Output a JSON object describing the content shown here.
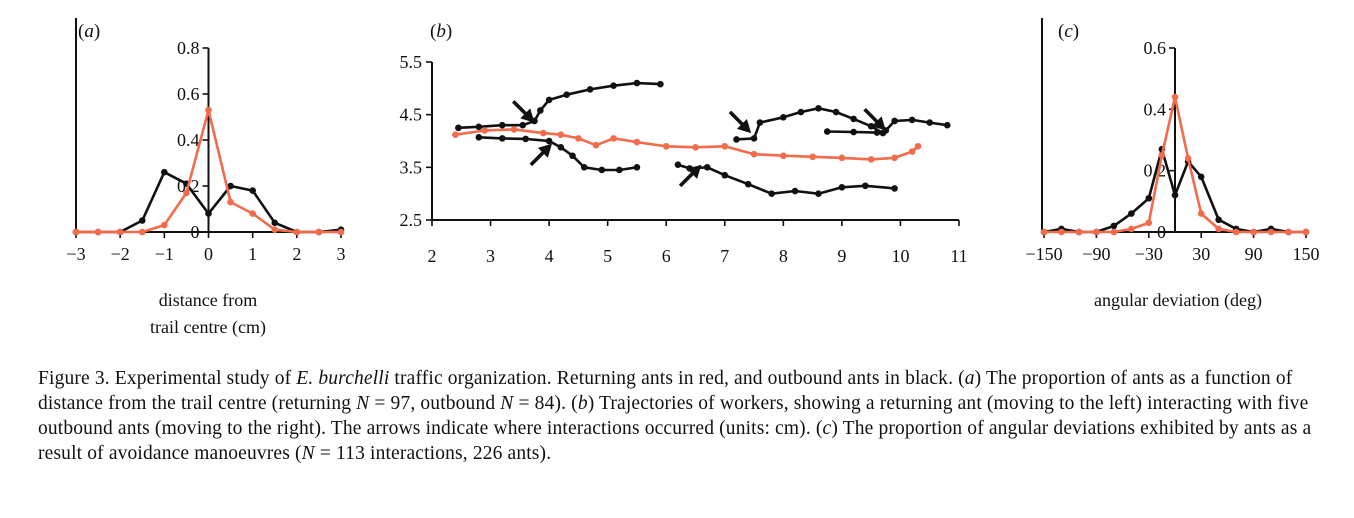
{
  "colors": {
    "returning": "#f26b4a",
    "outbound": "#111111",
    "axis": "#111111"
  },
  "chart_data": [
    {
      "panel_label": "(a)",
      "type": "line",
      "xlabel_lines": [
        "distance from",
        "trail centre (cm)"
      ],
      "xlim": [
        -3,
        3
      ],
      "ylim": [
        0,
        0.8
      ],
      "xticks": [
        "−3",
        "−2",
        "−1",
        "0",
        "1",
        "2",
        "3"
      ],
      "yticks": [
        "0",
        "0.2",
        "0.4",
        "0.6",
        "0.8"
      ],
      "series": [
        {
          "color": "#111111",
          "x": [
            -3,
            -2.5,
            -2,
            -1.5,
            -1,
            -0.5,
            0,
            0.5,
            1,
            1.5,
            2,
            2.5,
            3
          ],
          "y": [
            0,
            0,
            0,
            0.05,
            0.26,
            0.21,
            0.08,
            0.2,
            0.18,
            0.04,
            0,
            0,
            0.01
          ]
        },
        {
          "color": "#f26b4a",
          "x": [
            -3,
            -2.5,
            -2,
            -1.5,
            -1,
            -0.5,
            0,
            0.5,
            1,
            1.5,
            2,
            2.5,
            3
          ],
          "y": [
            0,
            0,
            0,
            0,
            0.03,
            0.17,
            0.53,
            0.13,
            0.08,
            0.01,
            0,
            0,
            0
          ]
        }
      ]
    },
    {
      "panel_label": "(b)",
      "type": "line",
      "xlim": [
        2,
        11
      ],
      "ylim": [
        2.5,
        5.5
      ],
      "xticks": [
        "2",
        "3",
        "4",
        "5",
        "6",
        "7",
        "8",
        "9",
        "10",
        "11"
      ],
      "yticks": [
        "2.5",
        "3.5",
        "4.5",
        "5.5"
      ],
      "series": [
        {
          "color": "#111111",
          "x": [
            2.45,
            2.8,
            3.2,
            3.55,
            3.75,
            3.85,
            4.0,
            4.3,
            4.7,
            5.1,
            5.5,
            5.9
          ],
          "y": [
            4.25,
            4.27,
            4.3,
            4.3,
            4.38,
            4.58,
            4.78,
            4.88,
            4.98,
            5.05,
            5.1,
            5.08
          ]
        },
        {
          "color": "#111111",
          "x": [
            2.8,
            3.2,
            3.6,
            4.0,
            4.2,
            4.4,
            4.6,
            4.9,
            5.2,
            5.5
          ],
          "y": [
            4.07,
            4.05,
            4.04,
            4.0,
            3.88,
            3.72,
            3.5,
            3.45,
            3.45,
            3.5
          ]
        },
        {
          "color": "#111111",
          "x": [
            6.2,
            6.4,
            6.7,
            7.0,
            7.4,
            7.8,
            8.2,
            8.6,
            9.0,
            9.4,
            9.9
          ],
          "y": [
            3.55,
            3.48,
            3.5,
            3.35,
            3.18,
            3.0,
            3.05,
            3.0,
            3.12,
            3.15,
            3.1
          ]
        },
        {
          "color": "#111111",
          "x": [
            7.2,
            7.5,
            7.6,
            8.0,
            8.3,
            8.6,
            8.9,
            9.2,
            9.5,
            9.7
          ],
          "y": [
            4.03,
            4.05,
            4.35,
            4.45,
            4.55,
            4.62,
            4.55,
            4.42,
            4.28,
            4.15
          ]
        },
        {
          "color": "#111111",
          "x": [
            8.75,
            9.2,
            9.6,
            9.75,
            9.9,
            10.2,
            10.5,
            10.8
          ],
          "y": [
            4.18,
            4.17,
            4.16,
            4.2,
            4.38,
            4.4,
            4.35,
            4.3
          ]
        },
        {
          "color": "#f26b4a",
          "x": [
            2.4,
            2.9,
            3.4,
            3.9,
            4.2,
            4.5,
            4.8,
            5.1,
            5.5,
            6.0,
            6.5,
            7.0,
            7.5,
            8.0,
            8.5,
            9.0,
            9.5,
            9.9,
            10.2,
            10.3
          ],
          "y": [
            4.12,
            4.2,
            4.22,
            4.15,
            4.12,
            4.05,
            3.92,
            4.05,
            3.98,
            3.9,
            3.88,
            3.9,
            3.75,
            3.72,
            3.7,
            3.68,
            3.65,
            3.68,
            3.8,
            3.9
          ]
        }
      ],
      "arrows": [
        {
          "x": 3.75,
          "y": 4.35,
          "dir": "down-right"
        },
        {
          "x": 4.05,
          "y": 3.95,
          "dir": "up-right"
        },
        {
          "x": 6.6,
          "y": 3.55,
          "dir": "up-right"
        },
        {
          "x": 7.45,
          "y": 4.15,
          "dir": "down-right"
        },
        {
          "x": 9.75,
          "y": 4.2,
          "dir": "down-right"
        }
      ]
    },
    {
      "panel_label": "(c)",
      "type": "line",
      "xlabel_lines": [
        "angular deviation (deg)"
      ],
      "xlim": [
        -150,
        150
      ],
      "ylim": [
        0,
        0.6
      ],
      "xticks": [
        "−150",
        "−90",
        "−30",
        "30",
        "90",
        "150"
      ],
      "xtick_values": [
        -150,
        -90,
        -30,
        30,
        90,
        150
      ],
      "yticks": [
        "0",
        "0.2",
        "0.4",
        "0.6"
      ],
      "series": [
        {
          "color": "#111111",
          "x": [
            -150,
            -130,
            -110,
            -90,
            -70,
            -50,
            -30,
            -15,
            0,
            15,
            30,
            50,
            70,
            90,
            110,
            130,
            150
          ],
          "y": [
            0,
            0.01,
            0,
            0,
            0.02,
            0.06,
            0.11,
            0.27,
            0.12,
            0.23,
            0.18,
            0.04,
            0.01,
            0,
            0.01,
            0,
            0
          ]
        },
        {
          "color": "#f26b4a",
          "x": [
            -150,
            -130,
            -110,
            -90,
            -70,
            -50,
            -30,
            -15,
            0,
            15,
            30,
            50,
            70,
            90,
            110,
            130,
            150
          ],
          "y": [
            0,
            0,
            0,
            0,
            0,
            0.01,
            0.03,
            0.25,
            0.44,
            0.24,
            0.06,
            0.01,
            0,
            0,
            0,
            0,
            0
          ]
        }
      ]
    }
  ],
  "caption": {
    "label": "Figure 3.",
    "t1": " Experimental study of ",
    "species": "E. burchelli",
    "t2": " traffic organization. Returning ants in red, and outbound ants in black. (",
    "pa": "a",
    "t3": ") The proportion of ants as a function of distance from the trail centre (returning ",
    "n1": "N",
    "t4": " = 97, outbound ",
    "n2": "N",
    "t5": " = 84). (",
    "pb": "b",
    "t6": ") Trajectories of workers, showing a returning ant (moving to the left) interacting with five outbound ants (moving to the right). The arrows indicate where interactions occurred (units: cm). (",
    "pc": "c",
    "t7": ") The proportion of angular deviations exhibited by ants as a result of avoidance manoeuvres (",
    "n3": "N",
    "t8": " = 113 interactions, 226 ants)."
  }
}
